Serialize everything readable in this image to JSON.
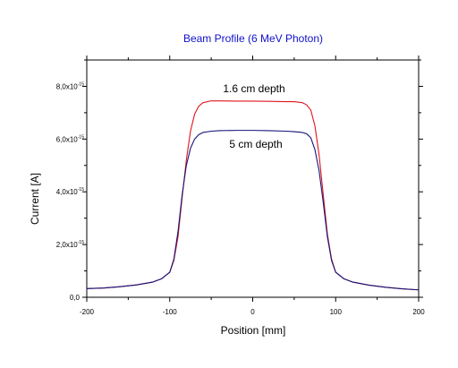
{
  "chart_data": {
    "type": "line",
    "title": "Beam Profile (6 MeV Photon)",
    "xlabel": "Position [mm]",
    "ylabel": "Current [A]",
    "xlim": [
      -200,
      200
    ],
    "ylim": [
      0,
      9e-15
    ],
    "x_ticks": [
      -200,
      -100,
      0,
      100,
      200
    ],
    "x_tick_labels": [
      "-200",
      "-100",
      "0",
      "100",
      "200"
    ],
    "y_ticks": [
      0,
      2e-15,
      4e-15,
      6e-15,
      8e-15
    ],
    "y_tick_labels": [
      {
        "base": "0,0",
        "exp": ""
      },
      {
        "base": "2,0x10",
        "exp": "-15"
      },
      {
        "base": "4,0x10",
        "exp": "-15"
      },
      {
        "base": "6,0x10",
        "exp": "-15"
      },
      {
        "base": "8,0x10",
        "exp": "-15"
      }
    ],
    "grid": false,
    "annotations": [
      "1.6 cm depth",
      "5 cm depth"
    ],
    "series": [
      {
        "label": "1.6 cm depth",
        "color": "#e0141e",
        "x": [
          -200,
          -180,
          -160,
          -140,
          -120,
          -110,
          -100,
          -95,
          -90,
          -85,
          -80,
          -75,
          -70,
          -65,
          -60,
          -50,
          -40,
          -20,
          0,
          20,
          40,
          50,
          60,
          65,
          70,
          75,
          80,
          85,
          90,
          95,
          100,
          110,
          120,
          140,
          160,
          180,
          200
        ],
        "y": [
          3.3e-16,
          3.5e-16,
          4e-16,
          4.7e-16,
          5.8e-16,
          7e-16,
          9.5e-16,
          1.4e-15,
          2.3e-15,
          3.8e-15,
          5.2e-15,
          6.3e-15,
          6.95e-15,
          7.25e-15,
          7.38e-15,
          7.45e-15,
          7.45e-15,
          7.44e-15,
          7.44e-15,
          7.43e-15,
          7.42e-15,
          7.42e-15,
          7.38e-15,
          7.3e-15,
          7.1e-15,
          6.5e-15,
          5.4e-15,
          3.9e-15,
          2.4e-15,
          1.45e-15,
          9.5e-16,
          7e-16,
          5.8e-16,
          4.6e-16,
          3.8e-16,
          3.2e-16,
          2.8e-16
        ]
      },
      {
        "label": "5 cm depth",
        "color": "#14147a",
        "x": [
          -200,
          -180,
          -160,
          -140,
          -120,
          -110,
          -100,
          -95,
          -90,
          -85,
          -80,
          -75,
          -70,
          -65,
          -60,
          -50,
          -40,
          -20,
          0,
          20,
          40,
          50,
          60,
          65,
          70,
          75,
          80,
          85,
          90,
          95,
          100,
          110,
          120,
          140,
          160,
          180,
          200
        ],
        "y": [
          3.3e-16,
          3.5e-16,
          4e-16,
          4.7e-16,
          5.8e-16,
          7e-16,
          9.5e-16,
          1.45e-15,
          2.5e-15,
          3.9e-15,
          5e-15,
          5.65e-15,
          6e-15,
          6.17e-15,
          6.25e-15,
          6.3e-15,
          6.32e-15,
          6.33e-15,
          6.33e-15,
          6.32e-15,
          6.3e-15,
          6.28e-15,
          6.25e-15,
          6.2e-15,
          6.05e-15,
          5.6e-15,
          4.8e-15,
          3.6e-15,
          2.3e-15,
          1.4e-15,
          9.5e-16,
          7e-16,
          5.8e-16,
          4.6e-16,
          3.8e-16,
          3.2e-16,
          2.8e-16
        ]
      }
    ]
  }
}
